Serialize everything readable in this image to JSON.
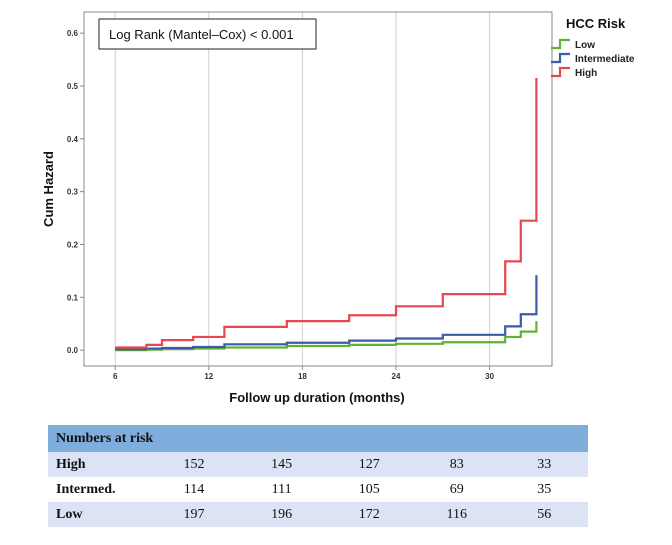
{
  "chart_data": {
    "type": "line",
    "xlabel": "Follow up duration (months)",
    "ylabel": "Cum Hazard",
    "xlim": [
      4,
      34
    ],
    "ylim": [
      -0.03,
      0.64
    ],
    "x_ticks": [
      6,
      12,
      18,
      24,
      30
    ],
    "y_ticks": [
      0.0,
      0.1,
      0.2,
      0.3,
      0.4,
      0.5,
      0.6
    ],
    "grid": "vertical",
    "annotation": "Log Rank (Mantel–Cox) < 0.001",
    "legend": {
      "title": "HCC Risk",
      "placement": "top-right"
    },
    "series": [
      {
        "name": "Low",
        "color": "#5fb336",
        "x": [
          6,
          8,
          9,
          11,
          13,
          17,
          21,
          24,
          27,
          31,
          32,
          33
        ],
        "y": [
          0.0,
          0.001,
          0.002,
          0.003,
          0.005,
          0.008,
          0.01,
          0.012,
          0.015,
          0.025,
          0.035,
          0.055
        ]
      },
      {
        "name": "Intermediate",
        "color": "#3b5ba9",
        "x": [
          6,
          8,
          9,
          11,
          13,
          17,
          21,
          24,
          27,
          31,
          32,
          33
        ],
        "y": [
          0.002,
          0.003,
          0.004,
          0.006,
          0.011,
          0.014,
          0.018,
          0.022,
          0.029,
          0.045,
          0.068,
          0.142
        ]
      },
      {
        "name": "High",
        "color": "#e8474f",
        "x": [
          6,
          8,
          9,
          11,
          13,
          17,
          21,
          24,
          27,
          31,
          32,
          33
        ],
        "y": [
          0.005,
          0.01,
          0.019,
          0.025,
          0.044,
          0.055,
          0.066,
          0.083,
          0.106,
          0.168,
          0.245,
          0.515
        ]
      }
    ]
  },
  "risk_table": {
    "title": "Numbers at risk",
    "rows": [
      {
        "label": "High",
        "values": [
          152,
          145,
          127,
          83,
          33
        ]
      },
      {
        "label": "Intermed.",
        "values": [
          114,
          111,
          105,
          69,
          35
        ]
      },
      {
        "label": "Low",
        "values": [
          197,
          196,
          172,
          116,
          56
        ]
      }
    ]
  }
}
